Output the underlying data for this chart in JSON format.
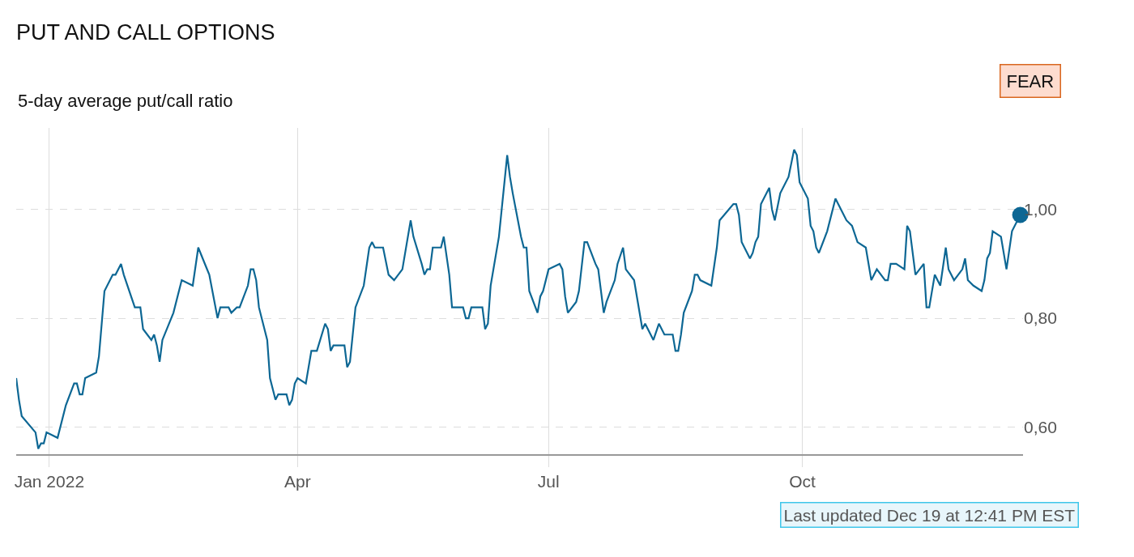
{
  "chart_data": {
    "type": "line",
    "title": "PUT AND CALL OPTIONS",
    "subtitle": "5-day average put/call ratio",
    "annotations": [
      "FEAR",
      "Last updated Dec 19 at 12:41 PM EST"
    ],
    "xlim": [
      "2021-12-20",
      "2022-12-20"
    ],
    "xticks": [
      {
        "value": "2022-01-01",
        "label": "Jan 2022"
      },
      {
        "value": "2022-04-01",
        "label": "Apr"
      },
      {
        "value": "2022-07-01",
        "label": "Jul"
      },
      {
        "value": "2022-10-01",
        "label": "Oct"
      }
    ],
    "ylim": [
      0.55,
      1.15
    ],
    "yticks": [
      {
        "value": 0.6,
        "label": "0,60"
      },
      {
        "value": 0.8,
        "label": "0,80"
      },
      {
        "value": 1.0,
        "label": "1,00"
      }
    ],
    "grid": true,
    "marker": "none",
    "line_style": "solid",
    "series": [
      {
        "color": "#0d6794",
        "x": [
          "2021-12-20",
          "2021-12-21",
          "2021-12-22",
          "2021-12-27",
          "2021-12-28",
          "2021-12-29",
          "2021-12-30",
          "2021-12-31",
          "2022-01-04",
          "2022-01-07",
          "2022-01-10",
          "2022-01-11",
          "2022-01-12",
          "2022-01-13",
          "2022-01-14",
          "2022-01-18",
          "2022-01-19",
          "2022-01-21",
          "2022-01-24",
          "2022-01-25",
          "2022-01-27",
          "2022-01-28",
          "2022-02-01",
          "2022-02-03",
          "2022-02-04",
          "2022-02-07",
          "2022-02-08",
          "2022-02-09",
          "2022-02-10",
          "2022-02-11",
          "2022-02-15",
          "2022-02-18",
          "2022-02-22",
          "2022-02-24",
          "2022-02-28",
          "2022-03-03",
          "2022-03-04",
          "2022-03-07",
          "2022-03-08",
          "2022-03-10",
          "2022-03-11",
          "2022-03-14",
          "2022-03-15",
          "2022-03-16",
          "2022-03-17",
          "2022-03-18",
          "2022-03-21",
          "2022-03-22",
          "2022-03-24",
          "2022-03-25",
          "2022-03-28",
          "2022-03-29",
          "2022-03-30",
          "2022-03-31",
          "2022-04-01",
          "2022-04-04",
          "2022-04-06",
          "2022-04-08",
          "2022-04-11",
          "2022-04-12",
          "2022-04-13",
          "2022-04-14",
          "2022-04-18",
          "2022-04-19",
          "2022-04-20",
          "2022-04-22",
          "2022-04-25",
          "2022-04-27",
          "2022-04-28",
          "2022-04-29",
          "2022-05-02",
          "2022-05-04",
          "2022-05-06",
          "2022-05-09",
          "2022-05-12",
          "2022-05-13",
          "2022-05-16",
          "2022-05-17",
          "2022-05-18",
          "2022-05-19",
          "2022-05-20",
          "2022-05-23",
          "2022-05-24",
          "2022-05-26",
          "2022-05-27",
          "2022-05-31",
          "2022-06-01",
          "2022-06-02",
          "2022-06-03",
          "2022-06-06",
          "2022-06-07",
          "2022-06-08",
          "2022-06-09",
          "2022-06-10",
          "2022-06-13",
          "2022-06-14",
          "2022-06-16",
          "2022-06-17",
          "2022-06-18",
          "2022-06-21",
          "2022-06-22",
          "2022-06-23",
          "2022-06-24",
          "2022-06-27",
          "2022-06-28",
          "2022-06-29",
          "2022-07-01",
          "2022-07-05",
          "2022-07-06",
          "2022-07-07",
          "2022-07-08",
          "2022-07-11",
          "2022-07-12",
          "2022-07-14",
          "2022-07-15",
          "2022-07-18",
          "2022-07-19",
          "2022-07-21",
          "2022-07-22",
          "2022-07-25",
          "2022-07-26",
          "2022-07-28",
          "2022-07-29",
          "2022-08-01",
          "2022-08-04",
          "2022-08-05",
          "2022-08-08",
          "2022-08-10",
          "2022-08-12",
          "2022-08-15",
          "2022-08-16",
          "2022-08-17",
          "2022-08-18",
          "2022-08-19",
          "2022-08-22",
          "2022-08-23",
          "2022-08-24",
          "2022-08-25",
          "2022-08-29",
          "2022-08-31",
          "2022-09-01",
          "2022-09-06",
          "2022-09-07",
          "2022-09-08",
          "2022-09-09",
          "2022-09-12",
          "2022-09-13",
          "2022-09-14",
          "2022-09-15",
          "2022-09-16",
          "2022-09-19",
          "2022-09-20",
          "2022-09-21",
          "2022-09-23",
          "2022-09-26",
          "2022-09-28",
          "2022-09-29",
          "2022-09-30",
          "2022-10-03",
          "2022-10-04",
          "2022-10-05",
          "2022-10-06",
          "2022-10-07",
          "2022-10-10",
          "2022-10-13",
          "2022-10-14",
          "2022-10-17",
          "2022-10-19",
          "2022-10-21",
          "2022-10-24",
          "2022-10-26",
          "2022-10-27",
          "2022-10-28",
          "2022-10-31",
          "2022-11-01",
          "2022-11-02",
          "2022-11-03",
          "2022-11-04",
          "2022-11-07",
          "2022-11-08",
          "2022-11-09",
          "2022-11-11",
          "2022-11-14",
          "2022-11-15",
          "2022-11-16",
          "2022-11-18",
          "2022-11-20",
          "2022-11-22",
          "2022-11-23",
          "2022-11-25",
          "2022-11-28",
          "2022-11-29",
          "2022-11-30",
          "2022-12-02",
          "2022-12-05",
          "2022-12-06",
          "2022-12-07",
          "2022-12-08",
          "2022-12-09",
          "2022-12-12",
          "2022-12-14",
          "2022-12-16",
          "2022-12-19"
        ],
        "values": [
          0.69,
          0.65,
          0.62,
          0.59,
          0.56,
          0.57,
          0.57,
          0.59,
          0.58,
          0.64,
          0.68,
          0.68,
          0.66,
          0.66,
          0.69,
          0.7,
          0.73,
          0.85,
          0.88,
          0.88,
          0.9,
          0.88,
          0.82,
          0.82,
          0.78,
          0.76,
          0.77,
          0.75,
          0.72,
          0.76,
          0.81,
          0.87,
          0.86,
          0.93,
          0.88,
          0.8,
          0.82,
          0.82,
          0.81,
          0.82,
          0.82,
          0.86,
          0.89,
          0.89,
          0.87,
          0.82,
          0.76,
          0.69,
          0.65,
          0.66,
          0.66,
          0.64,
          0.65,
          0.68,
          0.69,
          0.68,
          0.74,
          0.74,
          0.79,
          0.78,
          0.74,
          0.75,
          0.75,
          0.71,
          0.72,
          0.82,
          0.86,
          0.93,
          0.94,
          0.93,
          0.93,
          0.88,
          0.87,
          0.89,
          0.98,
          0.95,
          0.9,
          0.88,
          0.89,
          0.89,
          0.93,
          0.93,
          0.95,
          0.88,
          0.82,
          0.82,
          0.8,
          0.8,
          0.82,
          0.82,
          0.82,
          0.78,
          0.79,
          0.86,
          0.95,
          1.0,
          1.1,
          1.06,
          1.03,
          0.95,
          0.93,
          0.93,
          0.85,
          0.81,
          0.84,
          0.85,
          0.89,
          0.9,
          0.89,
          0.84,
          0.81,
          0.83,
          0.85,
          0.94,
          0.94,
          0.9,
          0.89,
          0.81,
          0.83,
          0.87,
          0.9,
          0.93,
          0.89,
          0.87,
          0.78,
          0.79,
          0.76,
          0.79,
          0.77,
          0.77,
          0.74,
          0.74,
          0.77,
          0.81,
          0.85,
          0.88,
          0.88,
          0.87,
          0.86,
          0.93,
          0.98,
          1.01,
          1.01,
          0.99,
          0.94,
          0.91,
          0.92,
          0.94,
          0.95,
          1.01,
          1.04,
          1.0,
          0.98,
          1.03,
          1.06,
          1.11,
          1.1,
          1.05,
          1.02,
          0.97,
          0.96,
          0.93,
          0.92,
          0.96,
          1.02,
          1.01,
          0.98,
          0.97,
          0.94,
          0.93,
          0.87,
          0.88,
          0.89,
          0.87,
          0.87,
          0.9,
          0.9,
          0.9,
          0.89,
          0.97,
          0.96,
          0.88,
          0.9,
          0.82,
          0.82,
          0.88,
          0.86,
          0.93,
          0.89,
          0.87,
          0.89,
          0.91,
          0.87,
          0.86,
          0.85,
          0.87,
          0.91,
          0.92,
          0.96,
          0.95,
          0.89,
          0.96,
          0.99
        ]
      },
      {
        "type": "scatter",
        "marker": "circle",
        "color": "#0d6794",
        "x": [
          "2022-12-19"
        ],
        "values": [
          0.99
        ]
      }
    ]
  }
}
